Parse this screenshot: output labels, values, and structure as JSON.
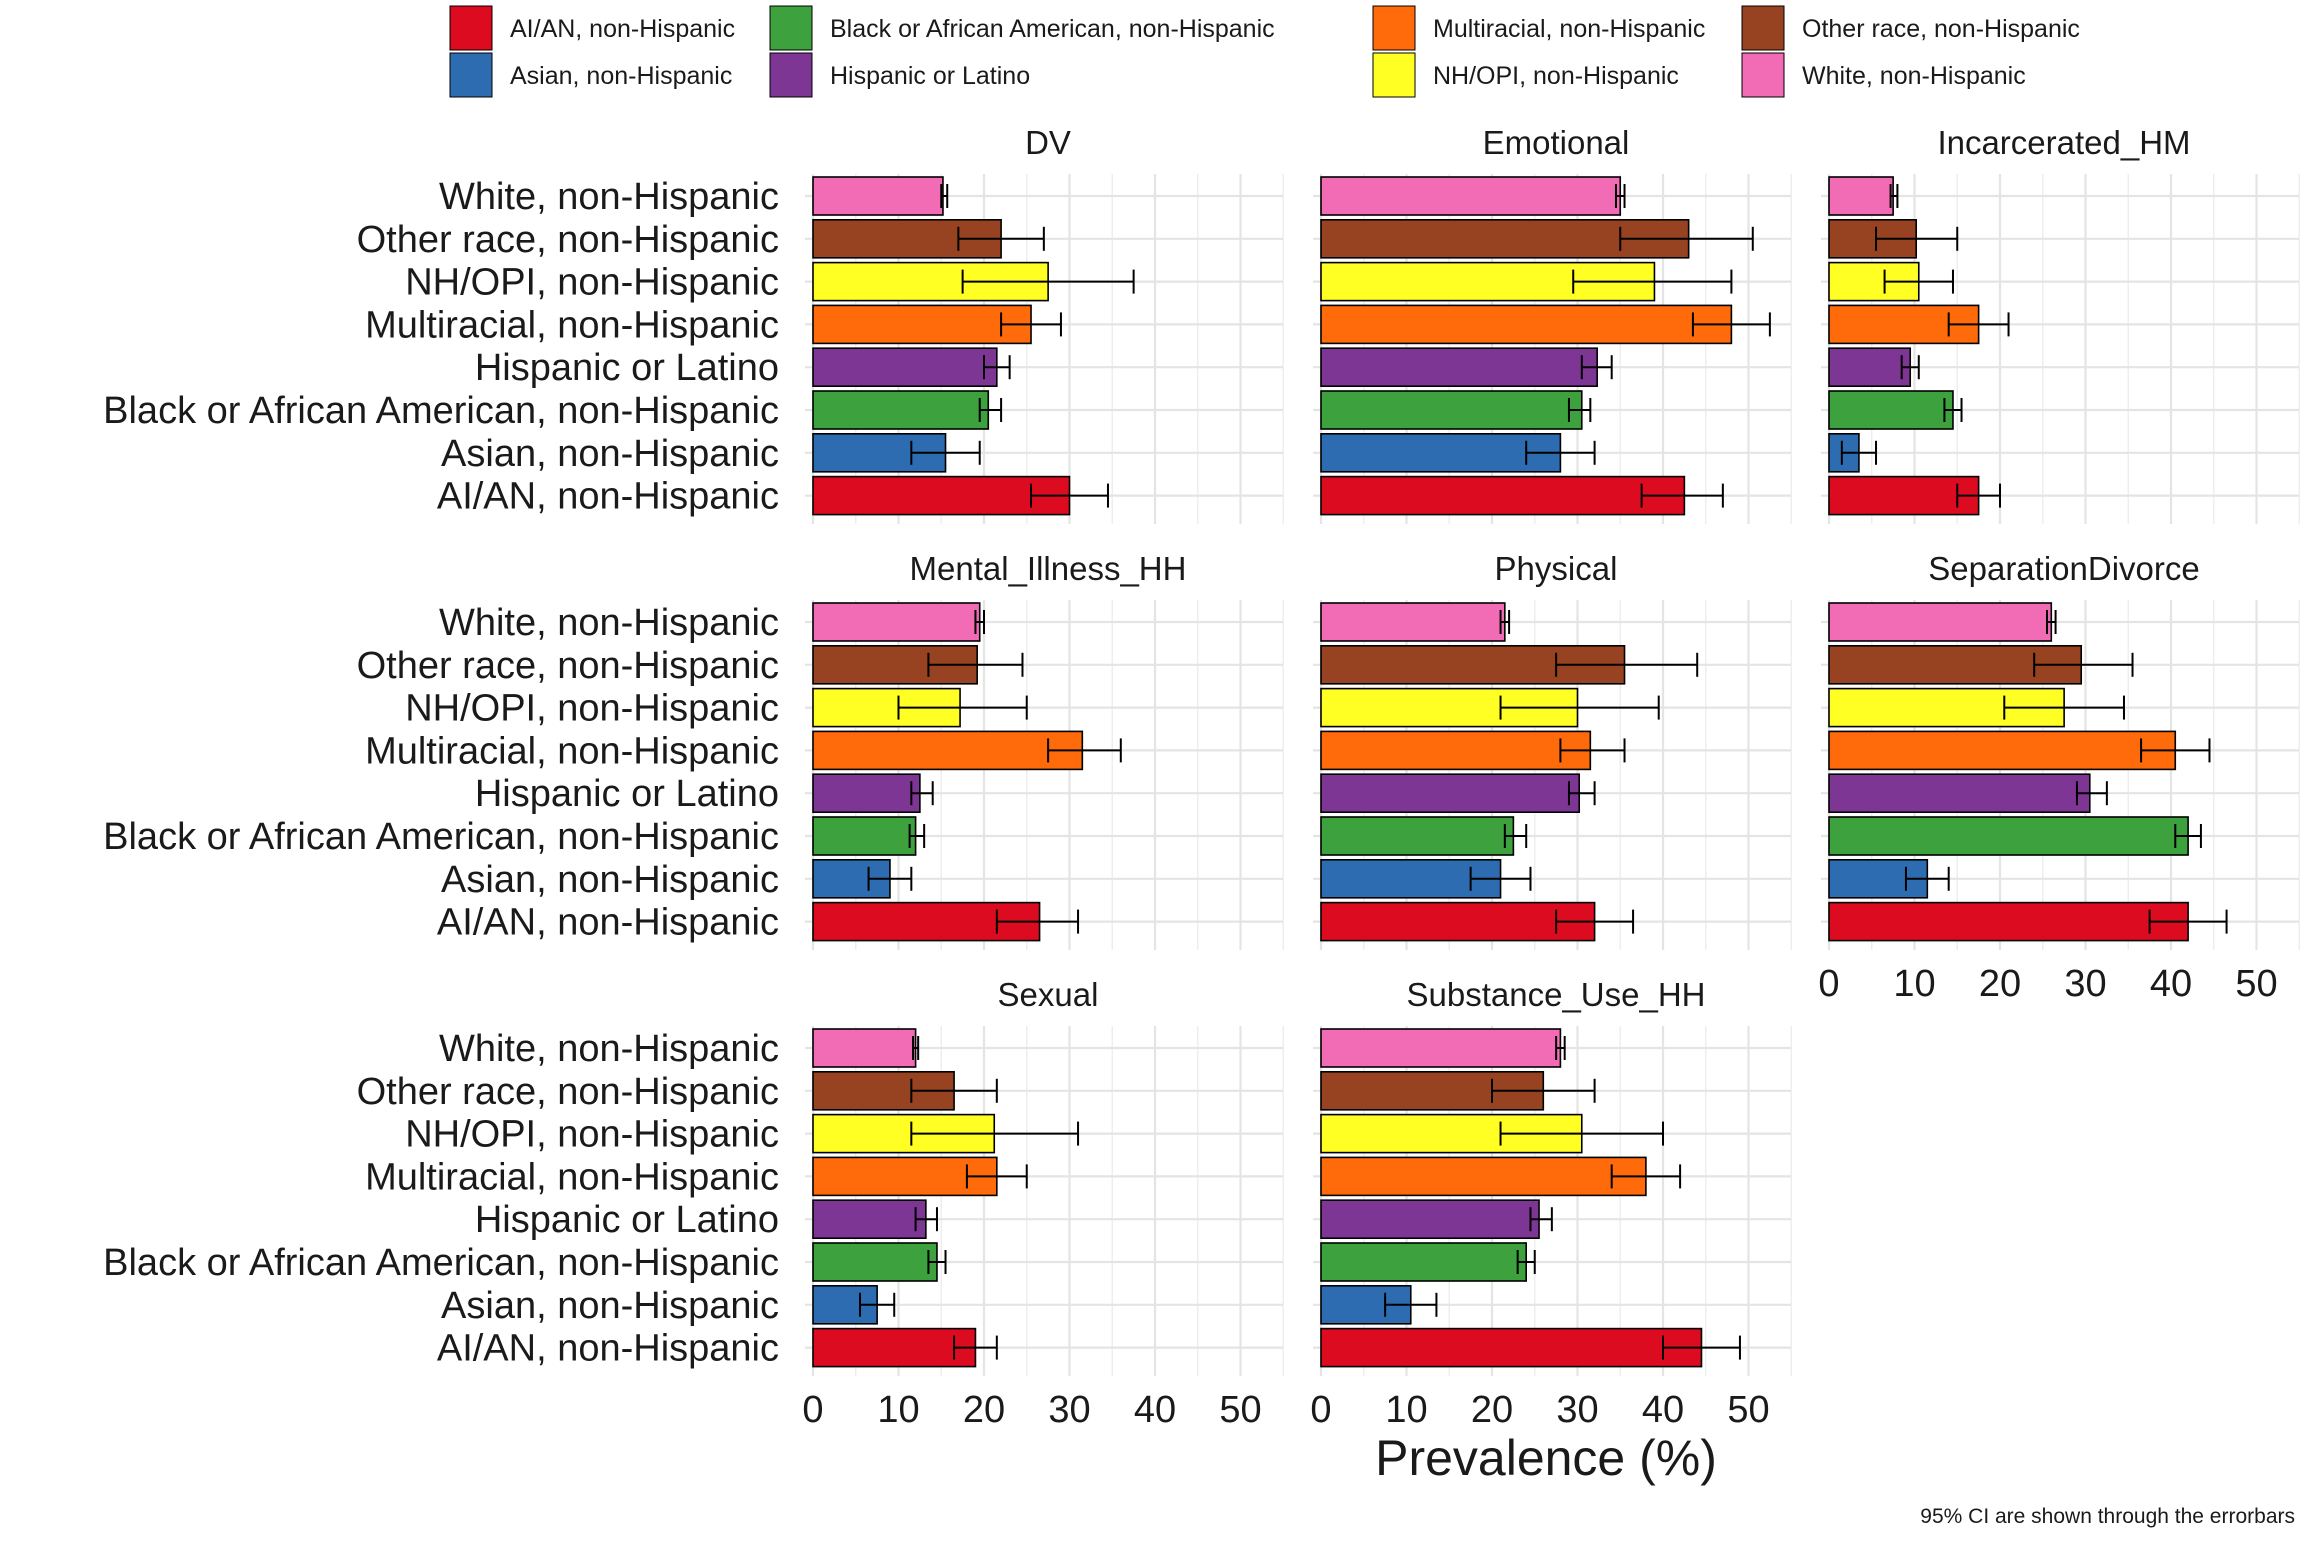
{
  "chart_data": {
    "type": "bar",
    "orientation": "horizontal",
    "xlabel": "Prevalence (%)",
    "ylabel": "",
    "xlim": [
      0,
      55
    ],
    "xticks": [
      0,
      10,
      20,
      30,
      40,
      50
    ],
    "grid": true,
    "legend_position": "top",
    "caption": "95% CI are shown through the errorbars",
    "categories": [
      "AI/AN, non-Hispanic",
      "Asian, non-Hispanic",
      "Black or African American, non-Hispanic",
      "Hispanic or Latino",
      "Multiracial, non-Hispanic",
      "NH/OPI, non-Hispanic",
      "Other race, non-Hispanic",
      "White, non-Hispanic"
    ],
    "legend": [
      {
        "name": "AI/AN, non-Hispanic",
        "color": "#DC0B1F"
      },
      {
        "name": "Asian, non-Hispanic",
        "color": "#2E6CB2"
      },
      {
        "name": "Black or African American, non-Hispanic",
        "color": "#3DA13D"
      },
      {
        "name": "Hispanic or Latino",
        "color": "#7E3695"
      },
      {
        "name": "Multiracial, non-Hispanic",
        "color": "#FF6A0A"
      },
      {
        "name": "NH/OPI, non-Hispanic",
        "color": "#FFFF24"
      },
      {
        "name": "Other race, non-Hispanic",
        "color": "#974220"
      },
      {
        "name": "White, non-Hispanic",
        "color": "#F26BB5"
      }
    ],
    "panels": [
      {
        "title": "DV",
        "values": [
          30.0,
          15.5,
          20.5,
          21.5,
          25.5,
          27.5,
          22.0,
          15.2
        ],
        "ci_low": [
          25.5,
          11.5,
          19.5,
          20.0,
          22.0,
          17.5,
          17.0,
          15.0
        ],
        "ci_high": [
          34.5,
          19.5,
          22.0,
          23.0,
          29.0,
          37.5,
          27.0,
          15.7
        ]
      },
      {
        "title": "Emotional",
        "values": [
          42.5,
          28.0,
          30.5,
          32.3,
          48.0,
          39.0,
          43.0,
          35.0
        ],
        "ci_low": [
          37.5,
          24.0,
          29.0,
          30.5,
          43.5,
          29.5,
          35.0,
          34.5
        ],
        "ci_high": [
          47.0,
          32.0,
          31.5,
          34.0,
          52.5,
          48.0,
          50.5,
          35.5
        ]
      },
      {
        "title": "Incarcerated_HM",
        "values": [
          17.5,
          3.5,
          14.5,
          9.5,
          17.5,
          10.5,
          10.2,
          7.5
        ],
        "ci_low": [
          15.0,
          1.5,
          13.5,
          8.5,
          14.0,
          6.5,
          5.5,
          7.2
        ],
        "ci_high": [
          20.0,
          5.5,
          15.5,
          10.5,
          21.0,
          14.5,
          15.0,
          8.0
        ]
      },
      {
        "title": "Mental_Illness_HH",
        "values": [
          26.5,
          9.0,
          12.0,
          12.5,
          31.5,
          17.2,
          19.2,
          19.5
        ],
        "ci_low": [
          21.5,
          6.5,
          11.3,
          11.5,
          27.5,
          10.0,
          13.5,
          19.0
        ],
        "ci_high": [
          31.0,
          11.5,
          13.0,
          14.0,
          36.0,
          25.0,
          24.5,
          20.0
        ]
      },
      {
        "title": "Physical",
        "values": [
          32.0,
          21.0,
          22.5,
          30.2,
          31.5,
          30.0,
          35.5,
          21.5
        ],
        "ci_low": [
          27.5,
          17.5,
          21.5,
          29.0,
          28.0,
          21.0,
          27.5,
          21.0
        ],
        "ci_high": [
          36.5,
          24.5,
          24.0,
          32.0,
          35.5,
          39.5,
          44.0,
          22.0
        ]
      },
      {
        "title": "SeparationDivorce",
        "values": [
          42.0,
          11.5,
          42.0,
          30.5,
          40.5,
          27.5,
          29.5,
          26.0
        ],
        "ci_low": [
          37.5,
          9.0,
          40.5,
          29.0,
          36.5,
          20.5,
          24.0,
          25.5
        ],
        "ci_high": [
          46.5,
          14.0,
          43.5,
          32.5,
          44.5,
          34.5,
          35.5,
          26.5
        ]
      },
      {
        "title": "Sexual",
        "values": [
          19.0,
          7.5,
          14.5,
          13.2,
          21.5,
          21.2,
          16.5,
          12.0
        ],
        "ci_low": [
          16.5,
          5.5,
          13.5,
          12.0,
          18.0,
          11.5,
          11.5,
          11.7
        ],
        "ci_high": [
          21.5,
          9.5,
          15.5,
          14.5,
          25.0,
          31.0,
          21.5,
          12.3
        ]
      },
      {
        "title": "Substance_Use_HH",
        "values": [
          44.5,
          10.5,
          24.0,
          25.5,
          38.0,
          30.5,
          26.0,
          28.0
        ],
        "ci_low": [
          40.0,
          7.5,
          23.0,
          24.5,
          34.0,
          21.0,
          20.0,
          27.5
        ],
        "ci_high": [
          49.0,
          13.5,
          25.0,
          27.0,
          42.0,
          40.0,
          32.0,
          28.5
        ]
      }
    ]
  }
}
